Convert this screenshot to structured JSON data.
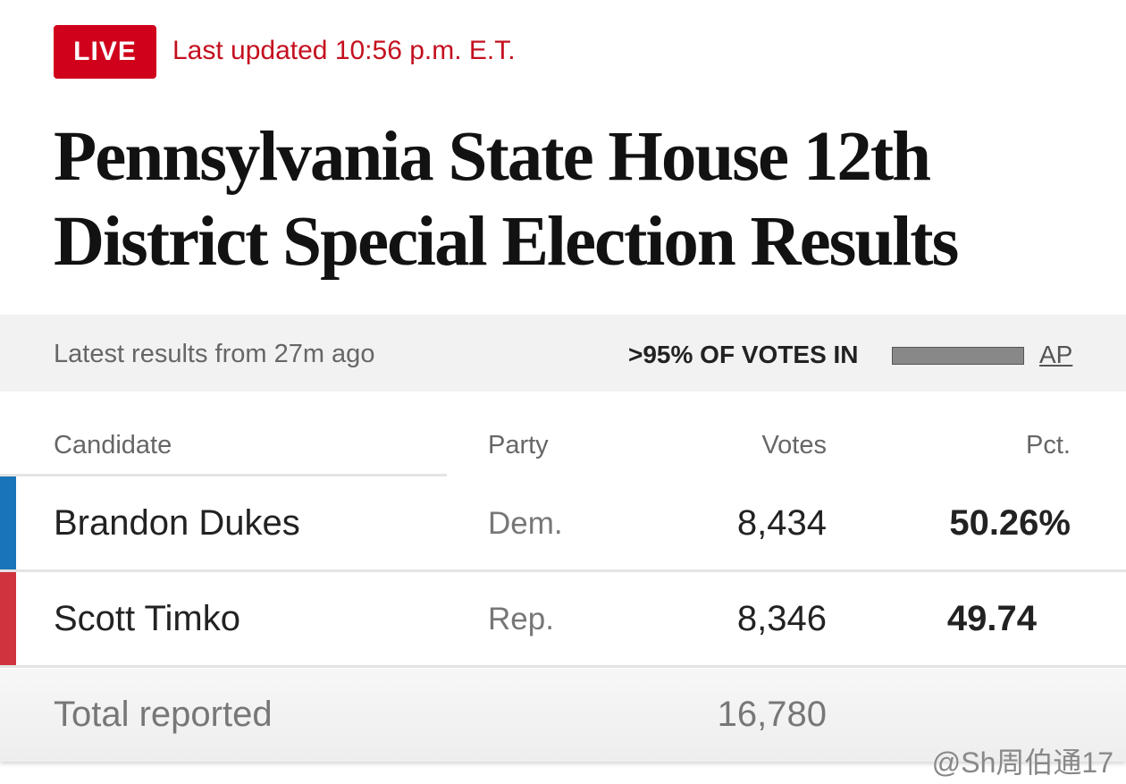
{
  "header": {
    "badge": "LIVE",
    "updated": "Last updated 10:56 p.m. E.T.",
    "title": "Pennsylvania State House 12th District Special Election Results"
  },
  "status": {
    "latest": "Latest results from 27m ago",
    "votes_in": ">95% OF VOTES IN",
    "source": "AP"
  },
  "table": {
    "columns": [
      "Candidate",
      "Party",
      "Votes",
      "Pct."
    ],
    "rows": [
      [
        "Brandon Dukes",
        "Dem.",
        "8,434",
        "50.26%"
      ],
      [
        "Scott Timko",
        "Rep.",
        "8,346",
        "49.74"
      ]
    ],
    "total": {
      "label": "Total reported",
      "votes": "16,780"
    }
  },
  "watermark": "@Sh周伯通17"
}
